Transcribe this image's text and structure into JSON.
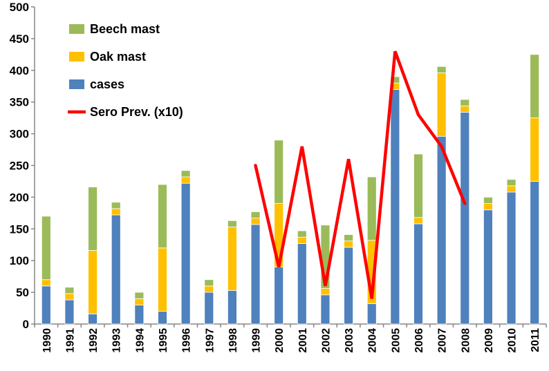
{
  "chart_data": {
    "type": "bar",
    "stacked": true,
    "categories": [
      "1990",
      "1991",
      "1992",
      "1993",
      "1994",
      "1995",
      "1996",
      "1997",
      "1998",
      "1999",
      "2000",
      "2001",
      "2002",
      "2003",
      "2004",
      "2005",
      "2006",
      "2007",
      "2008",
      "2009",
      "2010",
      "2011"
    ],
    "series": [
      {
        "name": "cases",
        "kind": "bar",
        "color": "#4f81bd",
        "values": [
          60,
          38,
          16,
          172,
          30,
          20,
          222,
          50,
          53,
          157,
          90,
          127,
          46,
          121,
          32,
          370,
          158,
          296,
          334,
          180,
          208,
          225
        ]
      },
      {
        "name": "Oak mast",
        "kind": "bar",
        "color": "#ffc000",
        "values": [
          10,
          10,
          100,
          10,
          10,
          100,
          10,
          10,
          100,
          10,
          100,
          10,
          10,
          10,
          100,
          10,
          10,
          100,
          10,
          10,
          10,
          100
        ]
      },
      {
        "name": "Beech mast",
        "kind": "bar",
        "color": "#9bbb59",
        "values": [
          100,
          10,
          100,
          10,
          10,
          100,
          10,
          10,
          10,
          10,
          100,
          10,
          100,
          10,
          100,
          10,
          100,
          10,
          10,
          10,
          10,
          100
        ]
      },
      {
        "name": "Sero Prev. (x10)",
        "kind": "line",
        "color": "#ff0000",
        "x": [
          "1999",
          "2000",
          "2001",
          "2002",
          "2003",
          "2004",
          "2005",
          "2006",
          "2007",
          "2008"
        ],
        "values": [
          250,
          90,
          280,
          60,
          260,
          40,
          430,
          330,
          280,
          190
        ]
      }
    ],
    "ylim": [
      0,
      500
    ],
    "yticks": [
      0,
      50,
      100,
      150,
      200,
      250,
      300,
      350,
      400,
      450,
      500
    ],
    "xlabel": "",
    "ylabel": "",
    "title": "",
    "grid": false,
    "legend": "top-left",
    "legend_order": [
      "Beech mast",
      "Oak mast",
      "cases",
      "Sero Prev. (x10)"
    ]
  }
}
